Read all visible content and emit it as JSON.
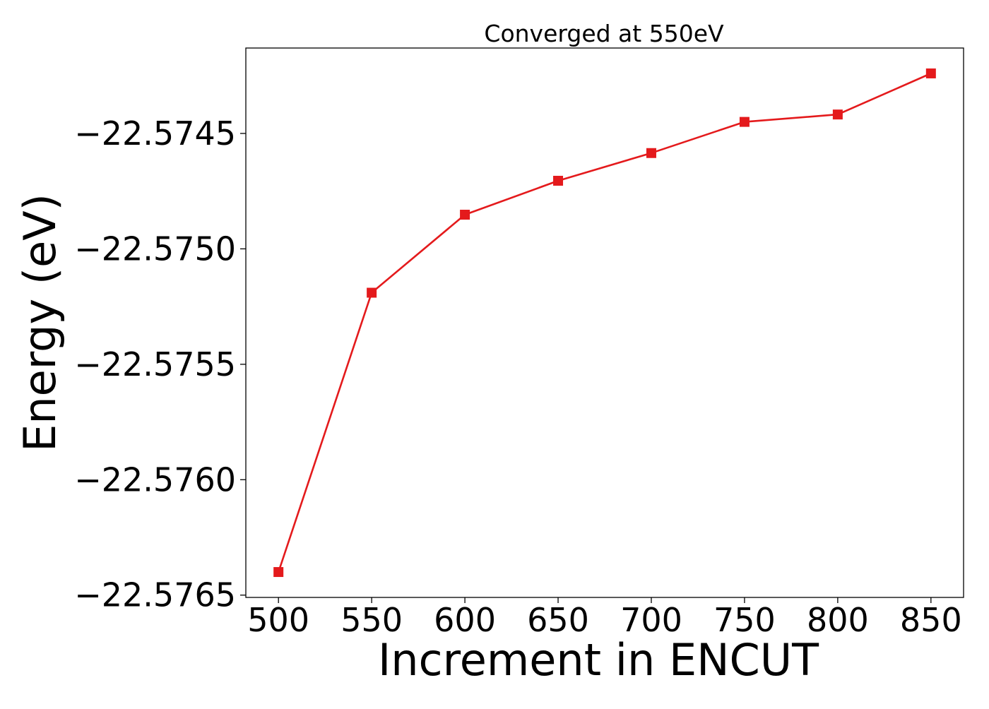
{
  "chart_data": {
    "type": "line",
    "title": "Converged at 550eV",
    "xlabel": "Increment in ENCUT",
    "ylabel": "Energy (eV)",
    "x": [
      500,
      550,
      600,
      650,
      700,
      750,
      800,
      850
    ],
    "series": [
      {
        "values": [
          -22.5764,
          -22.57519,
          -22.574852,
          -22.574705,
          -22.574585,
          -22.57445,
          -22.574418,
          -22.57424
        ],
        "color": "#e41a1c",
        "marker": "square"
      }
    ],
    "x_ticks": [
      500,
      550,
      600,
      650,
      700,
      750,
      800,
      850
    ],
    "x_tick_labels": [
      "500",
      "550",
      "600",
      "650",
      "700",
      "750",
      "800",
      "850"
    ],
    "y_ticks": [
      -22.5765,
      -22.576,
      -22.5755,
      -22.575,
      -22.5745
    ],
    "y_tick_labels": [
      "−22.5765",
      "−22.5760",
      "−22.5755",
      "−22.5750",
      "−22.5745"
    ],
    "xlim": [
      482.5,
      867.5
    ],
    "ylim": [
      -22.57651,
      -22.57413
    ],
    "grid": false,
    "legend": "none"
  }
}
